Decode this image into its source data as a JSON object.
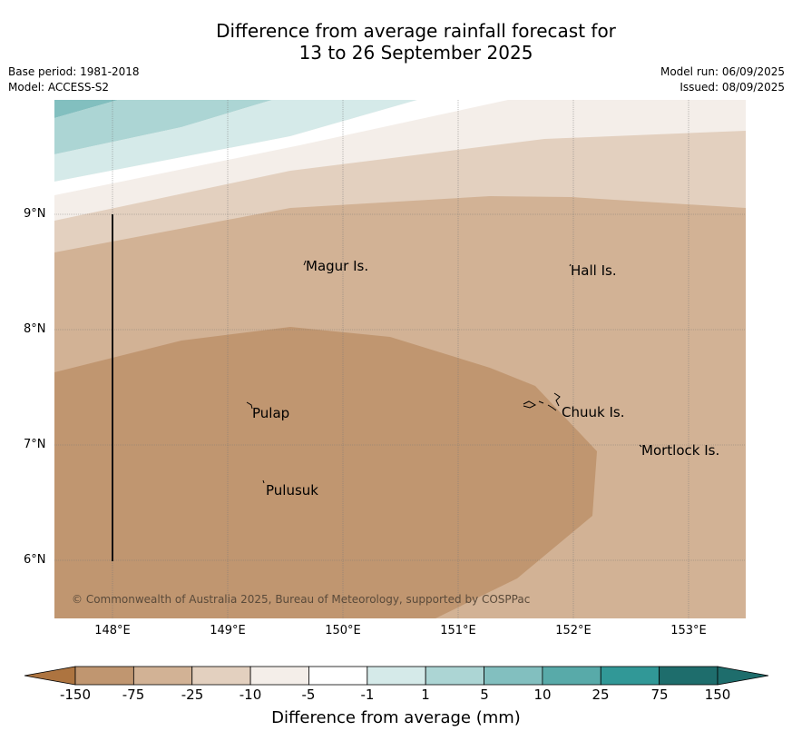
{
  "header": {
    "title_line1": "Difference from average rainfall forecast for",
    "title_line2": "13 to 26 September 2025",
    "base_period": "Base period: 1981-2018",
    "model": "Model: ACCESS-S2",
    "model_run": "Model run: 06/09/2025",
    "issued": "Issued: 08/09/2025"
  },
  "map": {
    "y_ticks": [
      "9°N",
      "8°N",
      "7°N",
      "6°N"
    ],
    "x_ticks": [
      "148°E",
      "149°E",
      "150°E",
      "151°E",
      "152°E",
      "153°E"
    ],
    "places": [
      "Magur Is.",
      "Hall Is.",
      "Pulap",
      "Chuuk Is.",
      "Mortlock Is.",
      "Pulusuk"
    ],
    "copyright": "© Commonwealth of Australia 2025, Bureau of Meteorology, supported by COSPPac"
  },
  "colorbar": {
    "labels": [
      "-150",
      "-75",
      "-25",
      "-10",
      "-5",
      "-1",
      "1",
      "5",
      "10",
      "25",
      "75",
      "150"
    ],
    "colors": [
      "#ad7440",
      "#c09670",
      "#d2b295",
      "#e3d0bf",
      "#f4eee9",
      "#ffffff",
      "#d5eae9",
      "#acd5d4",
      "#82bfbf",
      "#58aaa9",
      "#319897",
      "#1e6d6c"
    ],
    "title": "Difference from average (mm)"
  }
}
